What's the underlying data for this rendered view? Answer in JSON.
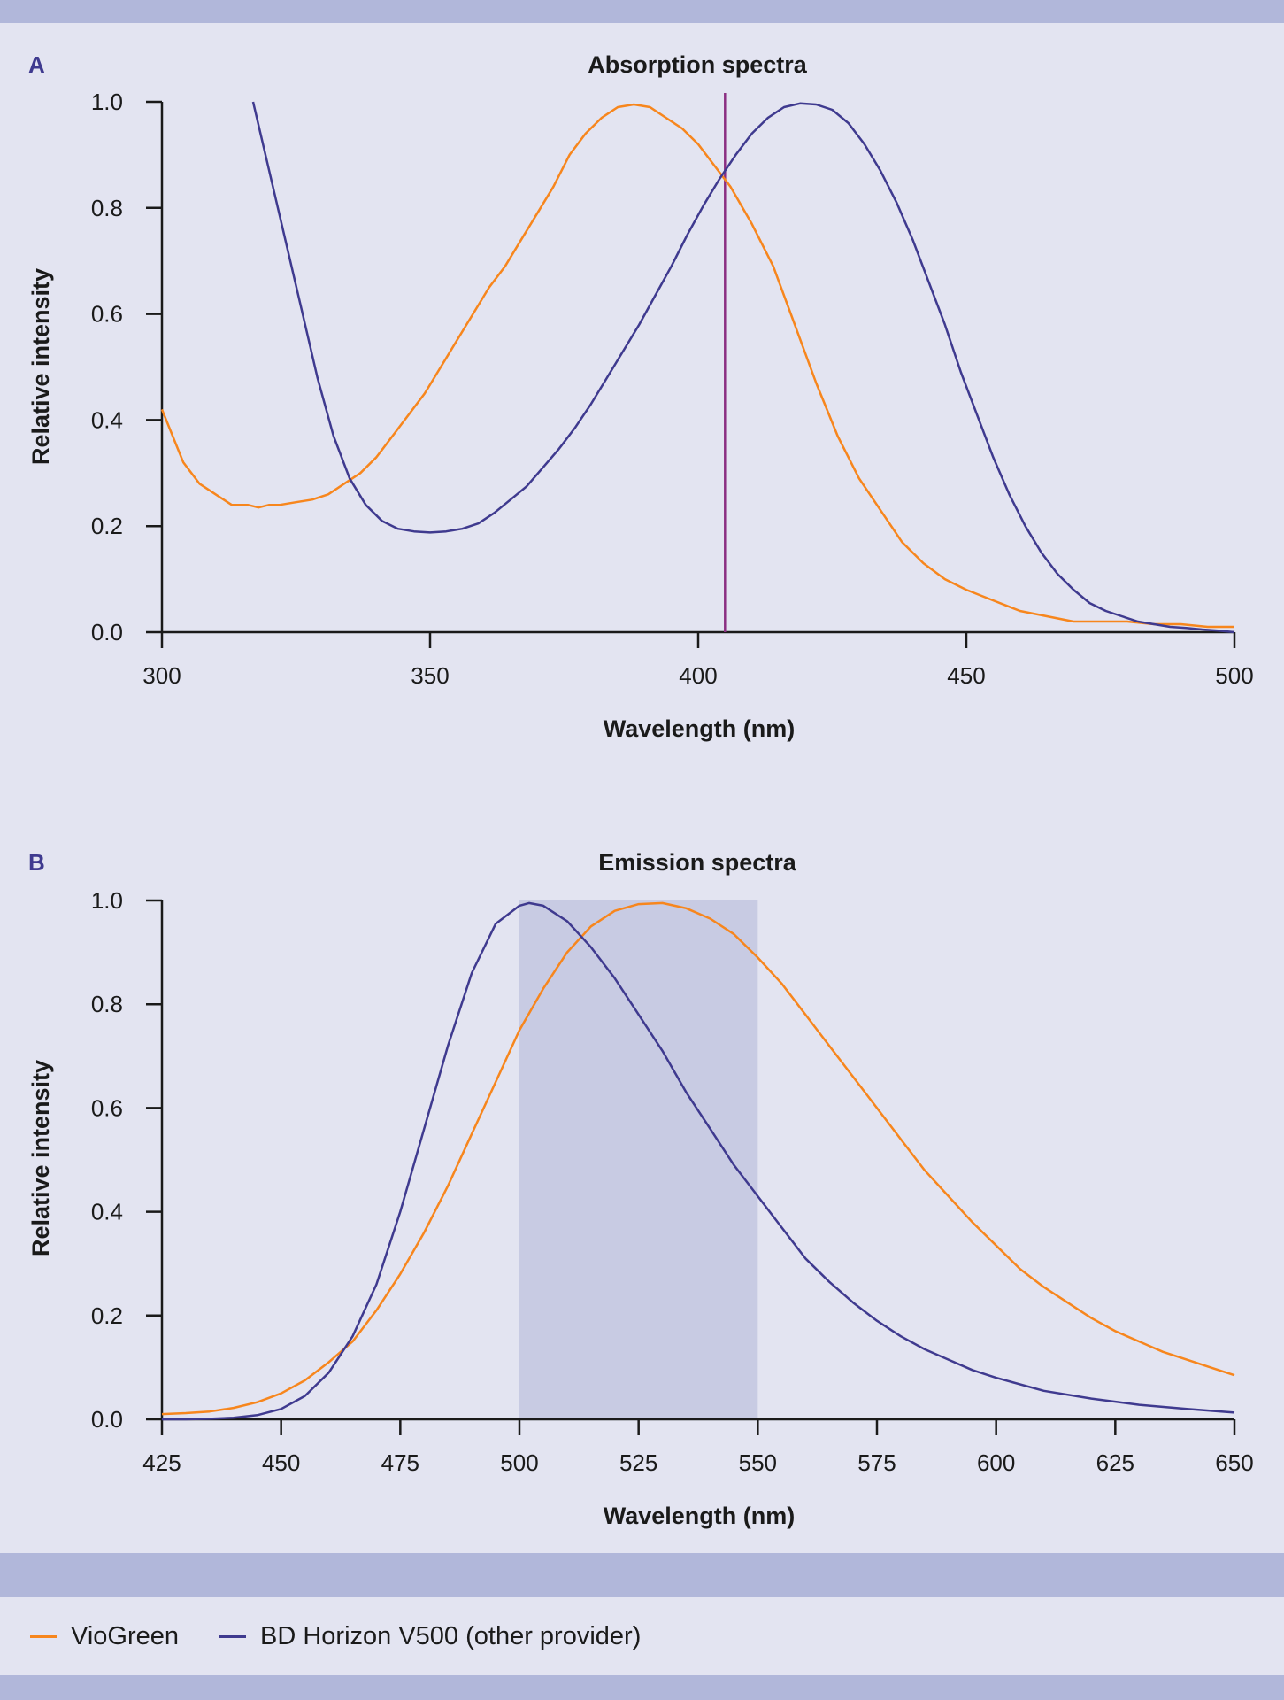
{
  "colors": {
    "background": "#e3e4f1",
    "band": "#b1b7da",
    "viogreen": "#f7861d",
    "horizon": "#3f3a8f",
    "laser_line": "#8b2f82",
    "shade": "#c8cbe3",
    "panel_letter": "#3f3a8f"
  },
  "legend": [
    {
      "label": "VioGreen",
      "color": "#f7861d"
    },
    {
      "label": "BD Horizon V500 (other provider)",
      "color": "#3f3a8f"
    }
  ],
  "chart_data": [
    {
      "panel_label": "A",
      "type": "line",
      "title": "Absorption spectra",
      "xlabel": "Wavelength (nm)",
      "ylabel": "Relative intensity",
      "xlim": [
        300,
        500
      ],
      "ylim": [
        0,
        1.0
      ],
      "xticks": [
        "300",
        "350",
        "400",
        "450",
        "500"
      ],
      "yticks": [
        "0.0",
        "0.2",
        "0.4",
        "0.6",
        "0.8",
        "1.0"
      ],
      "laser_line_x": 405,
      "grid": false,
      "series": [
        {
          "name": "VioGreen",
          "color": "#f7861d",
          "x": [
            300,
            302,
            304,
            307,
            310,
            313,
            316,
            318,
            320,
            322,
            325,
            328,
            331,
            334,
            337,
            340,
            343,
            346,
            349,
            352,
            355,
            358,
            361,
            364,
            367,
            370,
            373,
            376,
            379,
            382,
            385,
            388,
            391,
            394,
            397,
            400,
            403,
            406,
            410,
            414,
            418,
            422,
            426,
            430,
            434,
            438,
            442,
            446,
            450,
            455,
            460,
            465,
            470,
            475,
            480,
            485,
            490,
            495,
            500
          ],
          "y": [
            0.42,
            0.37,
            0.32,
            0.28,
            0.26,
            0.24,
            0.24,
            0.235,
            0.24,
            0.24,
            0.245,
            0.25,
            0.26,
            0.28,
            0.3,
            0.33,
            0.37,
            0.41,
            0.45,
            0.5,
            0.55,
            0.6,
            0.65,
            0.69,
            0.74,
            0.79,
            0.84,
            0.9,
            0.94,
            0.97,
            0.99,
            0.995,
            0.99,
            0.97,
            0.95,
            0.92,
            0.88,
            0.84,
            0.77,
            0.69,
            0.58,
            0.47,
            0.37,
            0.29,
            0.23,
            0.17,
            0.13,
            0.1,
            0.08,
            0.06,
            0.04,
            0.03,
            0.02,
            0.02,
            0.02,
            0.015,
            0.015,
            0.01,
            0.01
          ]
        },
        {
          "name": "BD Horizon V500 (other provider)",
          "color": "#3f3a8f",
          "x": [
            317,
            320,
            323,
            326,
            329,
            332,
            335,
            338,
            341,
            344,
            347,
            350,
            353,
            356,
            359,
            362,
            365,
            368,
            371,
            374,
            377,
            380,
            383,
            386,
            389,
            392,
            395,
            398,
            401,
            404,
            407,
            410,
            413,
            416,
            419,
            422,
            425,
            428,
            431,
            434,
            437,
            440,
            443,
            446,
            449,
            452,
            455,
            458,
            461,
            464,
            467,
            470,
            473,
            476,
            479,
            482,
            485,
            488,
            491,
            494,
            497,
            500
          ],
          "y": [
            1.0,
            0.87,
            0.74,
            0.61,
            0.48,
            0.37,
            0.29,
            0.24,
            0.21,
            0.195,
            0.19,
            0.188,
            0.19,
            0.195,
            0.205,
            0.225,
            0.25,
            0.275,
            0.31,
            0.345,
            0.385,
            0.43,
            0.48,
            0.53,
            0.58,
            0.635,
            0.69,
            0.75,
            0.805,
            0.855,
            0.9,
            0.94,
            0.97,
            0.99,
            0.997,
            0.995,
            0.985,
            0.96,
            0.92,
            0.87,
            0.81,
            0.74,
            0.66,
            0.58,
            0.49,
            0.41,
            0.33,
            0.26,
            0.2,
            0.15,
            0.11,
            0.08,
            0.055,
            0.04,
            0.03,
            0.02,
            0.015,
            0.01,
            0.008,
            0.005,
            0.003,
            0.0
          ]
        }
      ]
    },
    {
      "panel_label": "B",
      "type": "line",
      "title": "Emission spectra",
      "xlabel": "Wavelength (nm)",
      "ylabel": "Relative intensity",
      "xlim": [
        425,
        650
      ],
      "ylim": [
        0,
        1.0
      ],
      "xticks": [
        "425",
        "450",
        "475",
        "500",
        "525",
        "550",
        "575",
        "600",
        "625",
        "650"
      ],
      "yticks": [
        "0.0",
        "0.2",
        "0.4",
        "0.6",
        "0.8",
        "1.0"
      ],
      "shaded_band_x": [
        500,
        550
      ],
      "grid": false,
      "series": [
        {
          "name": "VioGreen",
          "color": "#f7861d",
          "x": [
            425,
            430,
            435,
            440,
            445,
            450,
            455,
            460,
            465,
            470,
            475,
            480,
            485,
            490,
            495,
            500,
            505,
            510,
            515,
            520,
            525,
            530,
            535,
            540,
            545,
            550,
            555,
            560,
            565,
            570,
            575,
            580,
            585,
            590,
            595,
            600,
            605,
            610,
            615,
            620,
            625,
            630,
            635,
            640,
            645,
            650
          ],
          "y": [
            0.01,
            0.012,
            0.015,
            0.022,
            0.033,
            0.05,
            0.075,
            0.11,
            0.15,
            0.21,
            0.28,
            0.36,
            0.45,
            0.55,
            0.65,
            0.75,
            0.83,
            0.9,
            0.95,
            0.98,
            0.993,
            0.995,
            0.985,
            0.965,
            0.935,
            0.89,
            0.84,
            0.78,
            0.72,
            0.66,
            0.6,
            0.54,
            0.48,
            0.43,
            0.38,
            0.335,
            0.29,
            0.255,
            0.225,
            0.195,
            0.17,
            0.15,
            0.13,
            0.115,
            0.1,
            0.085
          ]
        },
        {
          "name": "BD Horizon V500 (other provider)",
          "color": "#3f3a8f",
          "x": [
            425,
            430,
            435,
            440,
            445,
            450,
            455,
            460,
            465,
            470,
            475,
            480,
            485,
            490,
            495,
            500,
            502,
            505,
            510,
            515,
            520,
            525,
            530,
            535,
            540,
            545,
            550,
            555,
            560,
            565,
            570,
            575,
            580,
            585,
            590,
            595,
            600,
            610,
            620,
            630,
            640,
            650
          ],
          "y": [
            0.0,
            0.0,
            0.001,
            0.003,
            0.008,
            0.02,
            0.045,
            0.09,
            0.16,
            0.26,
            0.4,
            0.56,
            0.72,
            0.86,
            0.955,
            0.99,
            0.995,
            0.99,
            0.96,
            0.91,
            0.85,
            0.78,
            0.71,
            0.63,
            0.56,
            0.49,
            0.43,
            0.37,
            0.31,
            0.265,
            0.225,
            0.19,
            0.16,
            0.135,
            0.115,
            0.095,
            0.08,
            0.055,
            0.04,
            0.028,
            0.02,
            0.013
          ]
        }
      ]
    }
  ]
}
